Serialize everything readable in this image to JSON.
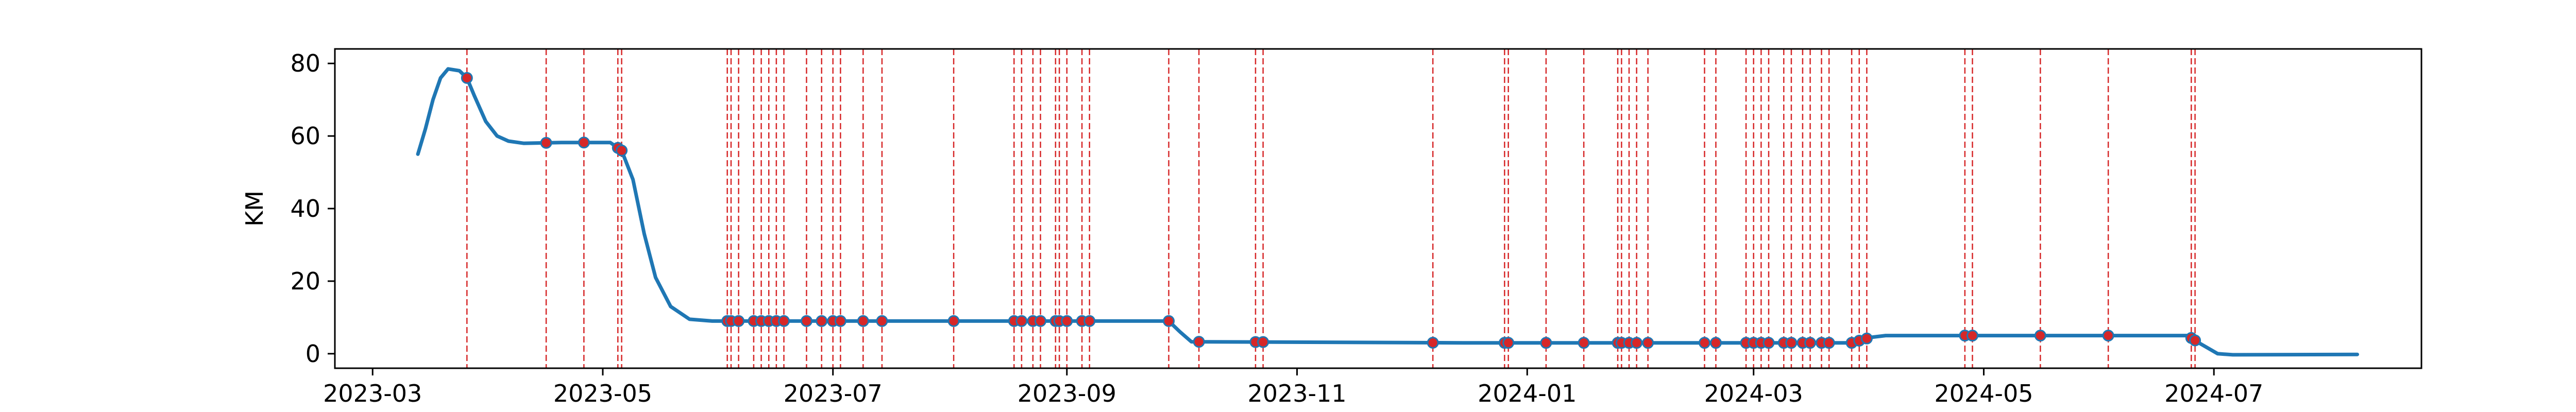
{
  "chart_data": {
    "type": "line",
    "title": "",
    "xlabel": "",
    "ylabel": "KM",
    "x_axis": "date",
    "xlim": [
      "2023-02-19",
      "2024-08-25"
    ],
    "ylim": [
      -4,
      84
    ],
    "x_ticks": [
      "2023-03-01",
      "2023-05-01",
      "2023-07-01",
      "2023-09-01",
      "2023-11-01",
      "2024-01-01",
      "2024-03-01",
      "2024-05-01",
      "2024-07-01"
    ],
    "x_tick_labels": [
      "2023-03",
      "2023-05",
      "2023-07",
      "2023-09",
      "2023-11",
      "2024-01",
      "2024-03",
      "2024-05",
      "2024-07"
    ],
    "y_ticks": [
      0,
      20,
      40,
      60,
      80
    ],
    "y_tick_labels": [
      "0",
      "20",
      "40",
      "60",
      "80"
    ],
    "grid": false,
    "legend": "none",
    "colors": {
      "line": "#1f77b4",
      "event": "#d62728",
      "axis": "#000000"
    },
    "series": [
      {
        "points": [
          [
            "2023-03-13",
            55
          ],
          [
            "2023-03-15",
            62
          ],
          [
            "2023-03-17",
            70
          ],
          [
            "2023-03-19",
            76
          ],
          [
            "2023-03-21",
            78.5
          ],
          [
            "2023-03-24",
            78
          ],
          [
            "2023-03-26",
            76
          ],
          [
            "2023-03-28",
            71
          ],
          [
            "2023-03-31",
            64
          ],
          [
            "2023-04-03",
            60
          ],
          [
            "2023-04-06",
            58.6
          ],
          [
            "2023-04-10",
            58
          ],
          [
            "2023-04-20",
            58.2
          ],
          [
            "2023-05-03",
            58.2
          ],
          [
            "2023-05-06",
            56
          ],
          [
            "2023-05-09",
            48
          ],
          [
            "2023-05-12",
            33
          ],
          [
            "2023-05-15",
            21
          ],
          [
            "2023-05-19",
            13
          ],
          [
            "2023-05-24",
            9.5
          ],
          [
            "2023-05-30",
            9
          ],
          [
            "2023-08-15",
            9
          ],
          [
            "2023-09-28",
            9
          ],
          [
            "2023-10-01",
            6
          ],
          [
            "2023-10-04",
            3.3
          ],
          [
            "2023-12-15",
            3
          ],
          [
            "2024-03-27",
            3
          ],
          [
            "2024-04-01",
            4.5
          ],
          [
            "2024-04-05",
            5
          ],
          [
            "2024-06-24",
            5
          ],
          [
            "2024-06-27",
            3
          ],
          [
            "2024-07-02",
            0
          ],
          [
            "2024-07-06",
            -0.3
          ],
          [
            "2024-08-08",
            -0.2
          ]
        ]
      }
    ],
    "event_dates": [
      "2023-03-26",
      "2023-04-16",
      "2023-04-26",
      "2023-05-05",
      "2023-05-06",
      "2023-06-03",
      "2023-06-04",
      "2023-06-06",
      "2023-06-10",
      "2023-06-12",
      "2023-06-14",
      "2023-06-16",
      "2023-06-18",
      "2023-06-24",
      "2023-06-28",
      "2023-07-01",
      "2023-07-03",
      "2023-07-09",
      "2023-07-14",
      "2023-08-02",
      "2023-08-18",
      "2023-08-20",
      "2023-08-23",
      "2023-08-25",
      "2023-08-29",
      "2023-08-30",
      "2023-09-01",
      "2023-09-05",
      "2023-09-07",
      "2023-09-28",
      "2023-10-06",
      "2023-10-21",
      "2023-10-23",
      "2023-12-07",
      "2023-12-26",
      "2023-12-27",
      "2024-01-06",
      "2024-01-16",
      "2024-01-25",
      "2024-01-26",
      "2024-01-28",
      "2024-01-30",
      "2024-02-02",
      "2024-02-17",
      "2024-02-20",
      "2024-02-28",
      "2024-03-01",
      "2024-03-03",
      "2024-03-05",
      "2024-03-09",
      "2024-03-11",
      "2024-03-14",
      "2024-03-16",
      "2024-03-19",
      "2024-03-21",
      "2024-03-27",
      "2024-03-29",
      "2024-03-31",
      "2024-04-26",
      "2024-04-28",
      "2024-05-16",
      "2024-06-03",
      "2024-06-25",
      "2024-06-26"
    ]
  }
}
